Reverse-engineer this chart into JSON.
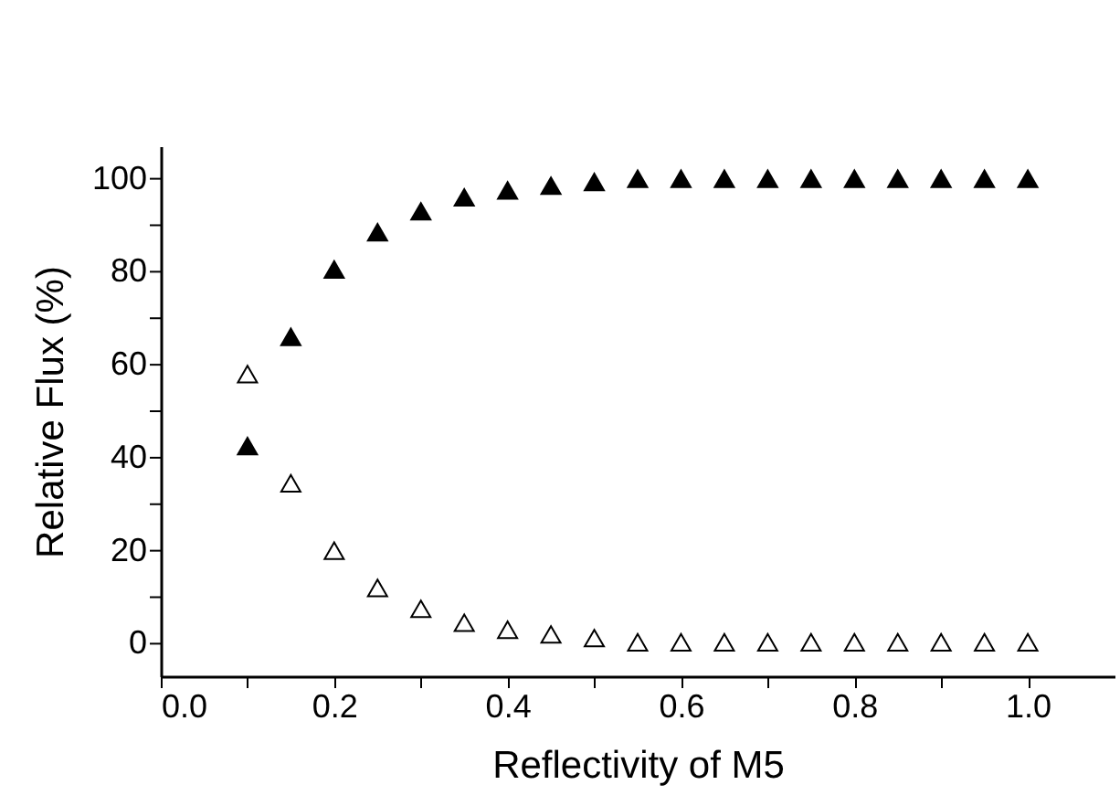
{
  "chart_data": {
    "type": "scatter",
    "xlabel": "Reflectivity of M5",
    "ylabel": "Relative Flux (%)",
    "marker": "triangle",
    "grid": false,
    "x": [
      0.1,
      0.15,
      0.2,
      0.25,
      0.3,
      0.35,
      0.4,
      0.45,
      0.5,
      0.55,
      0.6,
      0.65,
      0.7,
      0.75,
      0.8,
      0.85,
      0.9,
      0.95,
      1.0
    ],
    "series": [
      {
        "color": "#000000",
        "values": [
          42.5,
          66,
          80.5,
          88.5,
          93,
          96,
          97.5,
          98.5,
          99.3,
          100,
          100,
          100,
          100,
          100,
          100,
          100,
          100,
          100,
          100
        ]
      },
      {
        "color": "#ffffff",
        "values": [
          58,
          34.5,
          20,
          12,
          7.5,
          4.5,
          3,
          2,
          1.2,
          0.3,
          0.3,
          0.3,
          0.3,
          0.3,
          0.3,
          0.3,
          0.3,
          0.3,
          0.3
        ]
      }
    ],
    "xlim": [
      0,
      1.1
    ],
    "ylim": [
      -7,
      107
    ],
    "xticks": [
      {
        "value": 0,
        "label": "0.0"
      },
      {
        "value": 0.1,
        "label": null
      },
      {
        "value": 0.2,
        "label": "0.2"
      },
      {
        "value": 0.3,
        "label": null
      },
      {
        "value": 0.4,
        "label": "0.4"
      },
      {
        "value": 0.5,
        "label": null
      },
      {
        "value": 0.6,
        "label": "0.6"
      },
      {
        "value": 0.7,
        "label": null
      },
      {
        "value": 0.8,
        "label": "0.8"
      },
      {
        "value": 0.9,
        "label": null
      },
      {
        "value": 1.0,
        "label": "1.0"
      }
    ],
    "yticks": [
      0,
      {
        "value": 10,
        "label": null
      },
      20,
      {
        "value": 30,
        "label": null
      },
      40,
      {
        "value": 50,
        "label": null
      },
      60,
      {
        "value": 70,
        "label": null
      },
      80,
      {
        "value": 90,
        "label": null
      },
      100
    ]
  }
}
